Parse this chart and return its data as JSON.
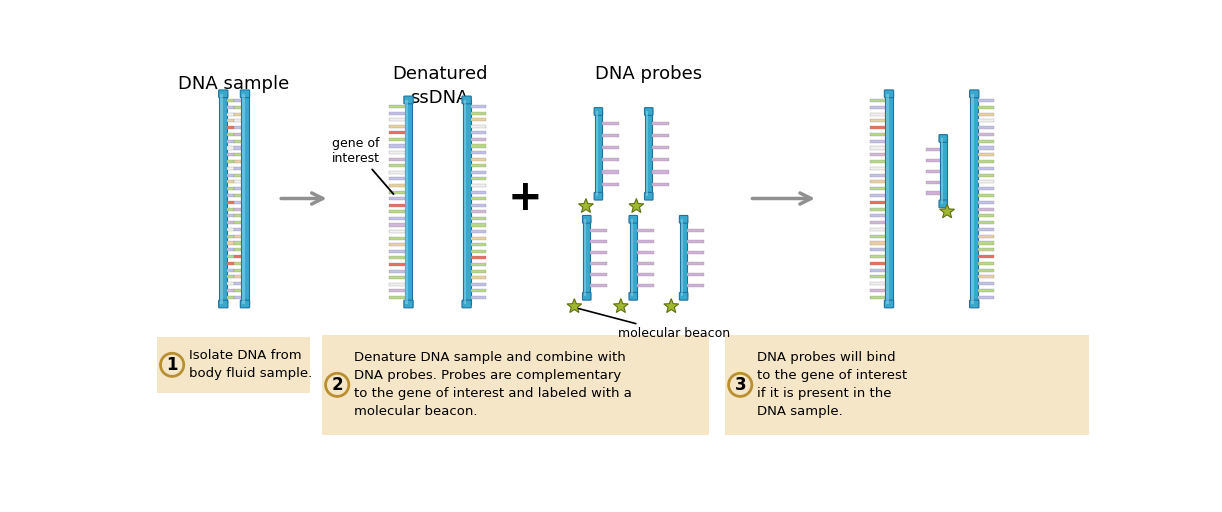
{
  "title_dna_sample": "DNA sample",
  "title_denatured": "Denatured\nssDNA",
  "title_probes": "DNA probes",
  "label_gene": "gene of\ninterest",
  "label_beacon": "molecular beacon",
  "step1_num": "1",
  "step1_text": "Isolate DNA from\nbody fluid sample.",
  "step2_num": "2",
  "step2_text": "Denature DNA sample and combine with\nDNA probes. Probes are complementary\nto the gene of interest and labeled with a\nmolecular beacon.",
  "step3_num": "3",
  "step3_text": "DNA probes will bind\nto the gene of interest\nif it is present in the\nDNA sample.",
  "bg_color": "#ffffff",
  "box_bg": "#f5e6c8",
  "box_border": "#b89030",
  "backbone_color": "#38a8cc",
  "backbone_grad_light": "#a8ddf0",
  "backbone_dark": "#2070a0",
  "arrow_color": "#909090",
  "star_color": "#a0b830",
  "star_edge": "#607010",
  "rung_colors_left": [
    "#b8d888",
    "#c0c0e8",
    "#f0f0f0",
    "#e8d0a0",
    "#e87060",
    "#b8d888",
    "#c0c0e8",
    "#f0f0f0",
    "#d0b8d8",
    "#b8d888",
    "#f0f0f0",
    "#c0c0e8",
    "#e8d0a0",
    "#b8d888",
    "#c0c0e8",
    "#e87060",
    "#b8d888",
    "#c0c0e8",
    "#d0b8d8",
    "#f0f0f0",
    "#b8d888",
    "#e8d0a0",
    "#c0c0e8",
    "#b8d888",
    "#e87060",
    "#c0c0e8",
    "#b8d888",
    "#f0f0f0",
    "#d0b8d8",
    "#b8d888"
  ],
  "rung_colors_right": [
    "#c0c0e8",
    "#b8d888",
    "#e8d0a0",
    "#f0f0f0",
    "#c0c0e8",
    "#d0b8d8",
    "#b8d888",
    "#c0c0e8",
    "#b8d888",
    "#e8d0a0",
    "#c0c0e8",
    "#b8d888",
    "#f0f0f0",
    "#c0c0e8",
    "#b8d888",
    "#c0c0e8",
    "#d0b8d8",
    "#b8d888",
    "#b8d888",
    "#c0c0e8",
    "#e8d0a0",
    "#b8d888",
    "#b8d888",
    "#e87060",
    "#b8d888",
    "#b8d888",
    "#e8d0a0",
    "#c0c0e8",
    "#b8d888",
    "#c0c0e8"
  ],
  "probe_rung_colors": [
    "#d0b0d8",
    "#d0b0d8",
    "#d0b0d8",
    "#d0b0d8",
    "#d0b0d8",
    "#d0b0d8",
    "#d0b0d8"
  ],
  "ssdna_left_colors": [
    "#b8d888",
    "#c0c0e8",
    "#f0f0f0",
    "#e8d0a0",
    "#e87060",
    "#b8d888",
    "#c0c0e8",
    "#f0f0f0",
    "#d0b8d8",
    "#b8d888",
    "#f0f0f0",
    "#c0c0e8",
    "#e8d0a0",
    "#b8d888",
    "#c0c0e8",
    "#e87060",
    "#b8d888",
    "#c0c0e8",
    "#d0b8d8",
    "#f0f0f0",
    "#b8d888",
    "#e8d0a0",
    "#c0c0e8",
    "#b8d888",
    "#e87060",
    "#c0c0e8",
    "#b8d888",
    "#f0f0f0",
    "#d0b8d8",
    "#b8d888"
  ],
  "ssdna_right_colors": [
    "#c0c0e8",
    "#b8d888",
    "#e8d0a0",
    "#f0f0f0",
    "#c0c0e8",
    "#d0b8d8",
    "#b8d888",
    "#c0c0e8",
    "#e8d0a0",
    "#b8d888",
    "#c0c0e8",
    "#b8d888",
    "#f0f0f0",
    "#c0c0e8",
    "#b8d888",
    "#c0c0e8",
    "#d0b8d8",
    "#b8d888",
    "#b8d888",
    "#c0c0e8",
    "#e8d0a0",
    "#b8d888",
    "#b8d888",
    "#e87060",
    "#b8d888",
    "#b8d888",
    "#e8d0a0",
    "#c0c0e8",
    "#b8d888",
    "#c0c0e8"
  ]
}
